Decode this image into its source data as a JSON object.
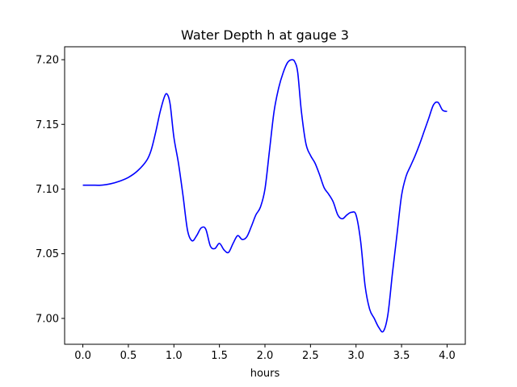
{
  "chart_data": {
    "type": "line",
    "title": "Water Depth h at gauge 3",
    "xlabel": "hours",
    "ylabel": "",
    "xlim": [
      -0.2,
      4.2
    ],
    "ylim": [
      6.98,
      7.21
    ],
    "xticks": [
      0.0,
      0.5,
      1.0,
      1.5,
      2.0,
      2.5,
      3.0,
      3.5,
      4.0
    ],
    "xtick_labels": [
      "0.0",
      "0.5",
      "1.0",
      "1.5",
      "2.0",
      "2.5",
      "3.0",
      "3.5",
      "4.0"
    ],
    "yticks": [
      7.0,
      7.05,
      7.1,
      7.15,
      7.2
    ],
    "ytick_labels": [
      "7.00",
      "7.05",
      "7.10",
      "7.15",
      "7.20"
    ],
    "grid": false,
    "series": [
      {
        "color": "#0000ff",
        "x": [
          0.0,
          0.1,
          0.2,
          0.3,
          0.4,
          0.5,
          0.6,
          0.7,
          0.75,
          0.8,
          0.85,
          0.9,
          0.93,
          0.96,
          1.0,
          1.05,
          1.1,
          1.15,
          1.2,
          1.25,
          1.3,
          1.35,
          1.4,
          1.45,
          1.5,
          1.55,
          1.6,
          1.65,
          1.7,
          1.75,
          1.8,
          1.85,
          1.9,
          1.95,
          2.0,
          2.05,
          2.1,
          2.15,
          2.2,
          2.25,
          2.3,
          2.33,
          2.36,
          2.4,
          2.45,
          2.5,
          2.55,
          2.6,
          2.65,
          2.7,
          2.75,
          2.8,
          2.85,
          2.9,
          2.95,
          3.0,
          3.05,
          3.1,
          3.15,
          3.2,
          3.25,
          3.3,
          3.35,
          3.4,
          3.45,
          3.5,
          3.55,
          3.6,
          3.65,
          3.7,
          3.75,
          3.8,
          3.85,
          3.9,
          3.95,
          4.0
        ],
        "y": [
          7.103,
          7.103,
          7.103,
          7.104,
          7.106,
          7.109,
          7.114,
          7.122,
          7.13,
          7.144,
          7.16,
          7.172,
          7.173,
          7.165,
          7.14,
          7.12,
          7.095,
          7.068,
          7.06,
          7.064,
          7.07,
          7.069,
          7.056,
          7.054,
          7.058,
          7.053,
          7.051,
          7.058,
          7.064,
          7.061,
          7.063,
          7.071,
          7.08,
          7.086,
          7.1,
          7.13,
          7.16,
          7.178,
          7.19,
          7.198,
          7.2,
          7.198,
          7.19,
          7.16,
          7.135,
          7.126,
          7.12,
          7.111,
          7.101,
          7.096,
          7.09,
          7.08,
          7.077,
          7.08,
          7.082,
          7.08,
          7.06,
          7.025,
          7.007,
          7.0,
          6.993,
          6.99,
          7.003,
          7.035,
          7.065,
          7.095,
          7.11,
          7.118,
          7.126,
          7.135,
          7.145,
          7.155,
          7.165,
          7.167,
          7.161,
          7.16
        ]
      }
    ]
  }
}
